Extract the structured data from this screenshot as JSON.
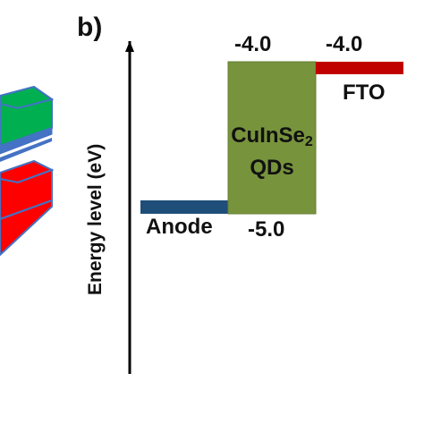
{
  "panel_label": "b)",
  "axis": {
    "y_label": "Energy level (eV)"
  },
  "levels": [
    {
      "name": "Anode",
      "value_label": "",
      "color": "#1f4e79"
    },
    {
      "name": "CuInSe2 QDs",
      "top_label": "-4.0",
      "bottom_label": "-5.0",
      "color": "#77933c",
      "border": "#6a7f34"
    },
    {
      "name": "FTO",
      "value_label": "-4.0",
      "color": "#c00000"
    }
  ],
  "qd_label": {
    "main": "CuInSe",
    "subscript": "2",
    "line2": "QDs"
  },
  "left_fragment_colors": {
    "green": "#00b050",
    "red": "#ff0000",
    "edge": "#4472c4"
  }
}
